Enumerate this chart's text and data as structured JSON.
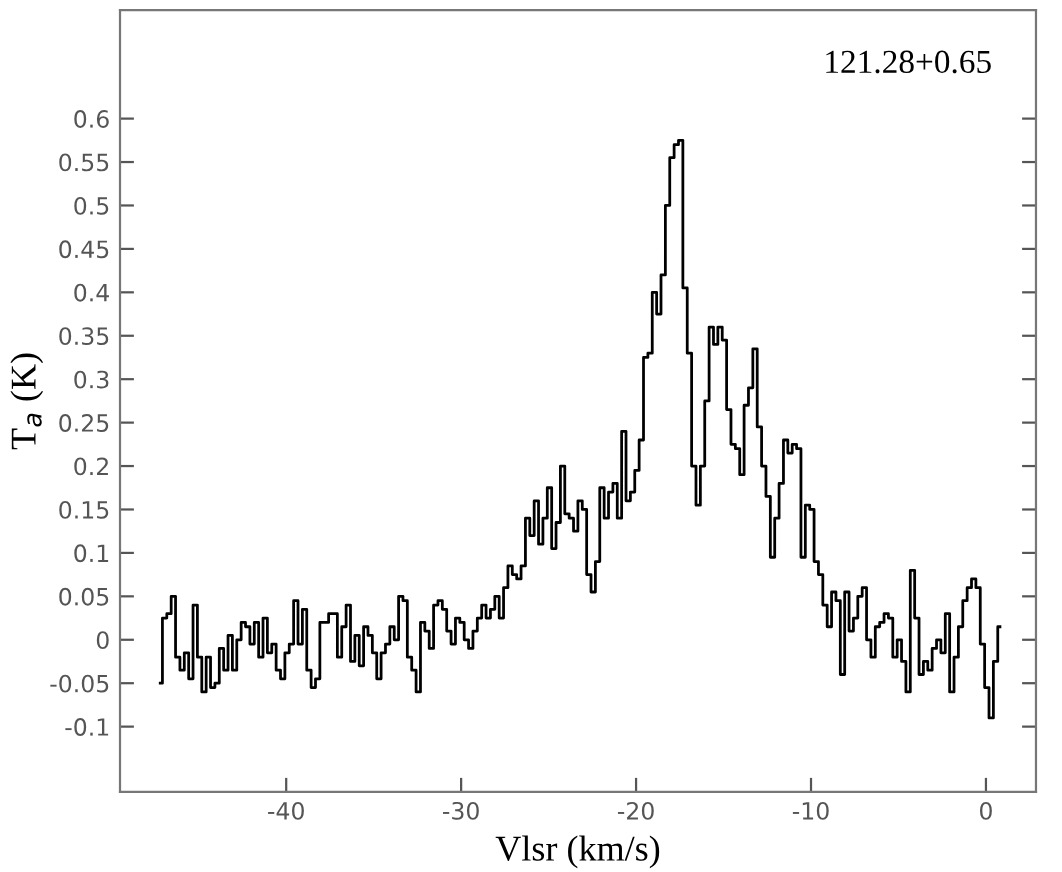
{
  "chart_data": {
    "type": "step",
    "xlabel": "Vlsr (km/s)",
    "ylabel": "T$_{a}$ (K)",
    "annotations": [
      "121.28+0.65"
    ],
    "xlim": [
      -49.5,
      2.86
    ],
    "ylim": [
      -0.175,
      0.725
    ],
    "xticks": [
      -40,
      -30,
      -20,
      -10,
      0
    ],
    "yticks": [
      -0.1,
      -0.05,
      0,
      0.05,
      0.1,
      0.15,
      0.2,
      0.25,
      0.3,
      0.35,
      0.4,
      0.45,
      0.5,
      0.55,
      0.6
    ],
    "grid": false,
    "series": [
      {
        "color": "#000000",
        "x": [
          -47.2,
          -46.95,
          -46.7,
          -46.45,
          -46.2,
          -45.95,
          -45.7,
          -45.45,
          -45.2,
          -44.95,
          -44.7,
          -44.45,
          -44.2,
          -43.95,
          -43.7,
          -43.45,
          -43.2,
          -42.95,
          -42.7,
          -42.45,
          -42.2,
          -41.95,
          -41.7,
          -41.45,
          -41.2,
          -40.95,
          -40.7,
          -40.45,
          -40.2,
          -39.95,
          -39.7,
          -39.45,
          -39.2,
          -38.95,
          -38.7,
          -38.45,
          -38.2,
          -37.95,
          -37.7,
          -37.45,
          -37.2,
          -36.95,
          -36.7,
          -36.45,
          -36.2,
          -35.95,
          -35.7,
          -35.45,
          -35.2,
          -34.95,
          -34.7,
          -34.45,
          -34.2,
          -33.95,
          -33.7,
          -33.45,
          -33.2,
          -32.95,
          -32.7,
          -32.45,
          -32.2,
          -31.95,
          -31.7,
          -31.45,
          -31.2,
          -30.95,
          -30.7,
          -30.45,
          -30.2,
          -29.95,
          -29.7,
          -29.45,
          -29.2,
          -28.95,
          -28.7,
          -28.45,
          -28.2,
          -27.95,
          -27.7,
          -27.45,
          -27.2,
          -26.95,
          -26.7,
          -26.45,
          -26.2,
          -25.95,
          -25.7,
          -25.45,
          -25.2,
          -24.95,
          -24.7,
          -24.45,
          -24.2,
          -23.95,
          -23.7,
          -23.45,
          -23.2,
          -22.95,
          -22.7,
          -22.45,
          -22.2,
          -21.95,
          -21.7,
          -21.45,
          -21.2,
          -20.95,
          -20.7,
          -20.45,
          -20.2,
          -19.95,
          -19.7,
          -19.45,
          -19.2,
          -18.95,
          -18.7,
          -18.45,
          -18.2,
          -17.95,
          -17.7,
          -17.45,
          -17.2,
          -16.95,
          -16.7,
          -16.45,
          -16.2,
          -15.95,
          -15.7,
          -15.45,
          -15.2,
          -14.95,
          -14.7,
          -14.45,
          -14.2,
          -13.95,
          -13.7,
          -13.45,
          -13.2,
          -12.95,
          -12.7,
          -12.45,
          -12.2,
          -11.95,
          -11.7,
          -11.45,
          -11.2,
          -10.95,
          -10.7,
          -10.45,
          -10.2,
          -9.95,
          -9.7,
          -9.45,
          -9.2,
          -8.95,
          -8.7,
          -8.45,
          -8.2,
          -7.95,
          -7.7,
          -7.45,
          -7.2,
          -6.95,
          -6.7,
          -6.45,
          -6.2,
          -5.95,
          -5.7,
          -5.45,
          -5.2,
          -4.95,
          -4.7,
          -4.45,
          -4.2,
          -3.95,
          -3.7,
          -3.45,
          -3.2,
          -2.95,
          -2.7,
          -2.45,
          -2.2,
          -1.95,
          -1.7,
          -1.45,
          -1.2,
          -0.95,
          -0.7,
          -0.45,
          -0.2,
          0.05,
          0.3,
          0.55,
          0.8
        ],
        "values": [
          -0.05,
          0.025,
          0.03,
          0.05,
          -0.02,
          -0.035,
          -0.015,
          -0.045,
          0.04,
          -0.02,
          -0.06,
          -0.02,
          -0.055,
          -0.05,
          -0.01,
          -0.035,
          0.005,
          -0.035,
          0,
          0.02,
          0.015,
          -0.005,
          0.02,
          -0.02,
          0.025,
          -0.015,
          -0.005,
          -0.035,
          -0.045,
          -0.015,
          -0.005,
          0.045,
          -0.005,
          0.035,
          -0.035,
          -0.055,
          -0.045,
          0.02,
          0.02,
          0.03,
          0.03,
          -0.02,
          0.015,
          0.04,
          -0.025,
          0.005,
          -0.03,
          0.015,
          0.005,
          -0.015,
          -0.045,
          -0.015,
          -0.005,
          0.015,
          0,
          0.05,
          0.045,
          -0.02,
          -0.035,
          -0.06,
          0.02,
          0.01,
          -0.01,
          0.04,
          0.045,
          0.035,
          0.01,
          -0.005,
          0.025,
          0.02,
          0,
          -0.01,
          0.01,
          0.025,
          0.04,
          0.025,
          0.035,
          0.05,
          0.025,
          0.06,
          0.085,
          0.075,
          0.07,
          0.085,
          0.14,
          0.12,
          0.16,
          0.11,
          0.14,
          0.175,
          0.105,
          0.135,
          0.2,
          0.145,
          0.14,
          0.125,
          0.16,
          0.15,
          0.075,
          0.055,
          0.09,
          0.175,
          0.14,
          0.17,
          0.18,
          0.14,
          0.24,
          0.16,
          0.17,
          0.195,
          0.23,
          0.325,
          0.33,
          0.4,
          0.375,
          0.42,
          0.5,
          0.555,
          0.57,
          0.575,
          0.405,
          0.33,
          0.2,
          0.155,
          0.2,
          0.275,
          0.36,
          0.34,
          0.36,
          0.345,
          0.265,
          0.225,
          0.22,
          0.19,
          0.27,
          0.29,
          0.335,
          0.245,
          0.2,
          0.165,
          0.095,
          0.14,
          0.18,
          0.23,
          0.215,
          0.225,
          0.22,
          0.095,
          0.155,
          0.15,
          0.09,
          0.075,
          0.04,
          0.015,
          0.055,
          0.045,
          -0.04,
          0.055,
          0.01,
          0.025,
          0.05,
          0.06,
          0,
          -0.02,
          0.015,
          0.02,
          0.03,
          0.025,
          -0.02,
          0,
          -0.025,
          -0.06,
          0.08,
          0.025,
          -0.04,
          -0.025,
          -0.035,
          -0.01,
          0,
          -0.015,
          0.03,
          -0.06,
          -0.02,
          0.015,
          0.045,
          0.06,
          0.07,
          0.06,
          -0.005,
          -0.055,
          -0.09,
          -0.025,
          0.015
        ]
      }
    ]
  }
}
